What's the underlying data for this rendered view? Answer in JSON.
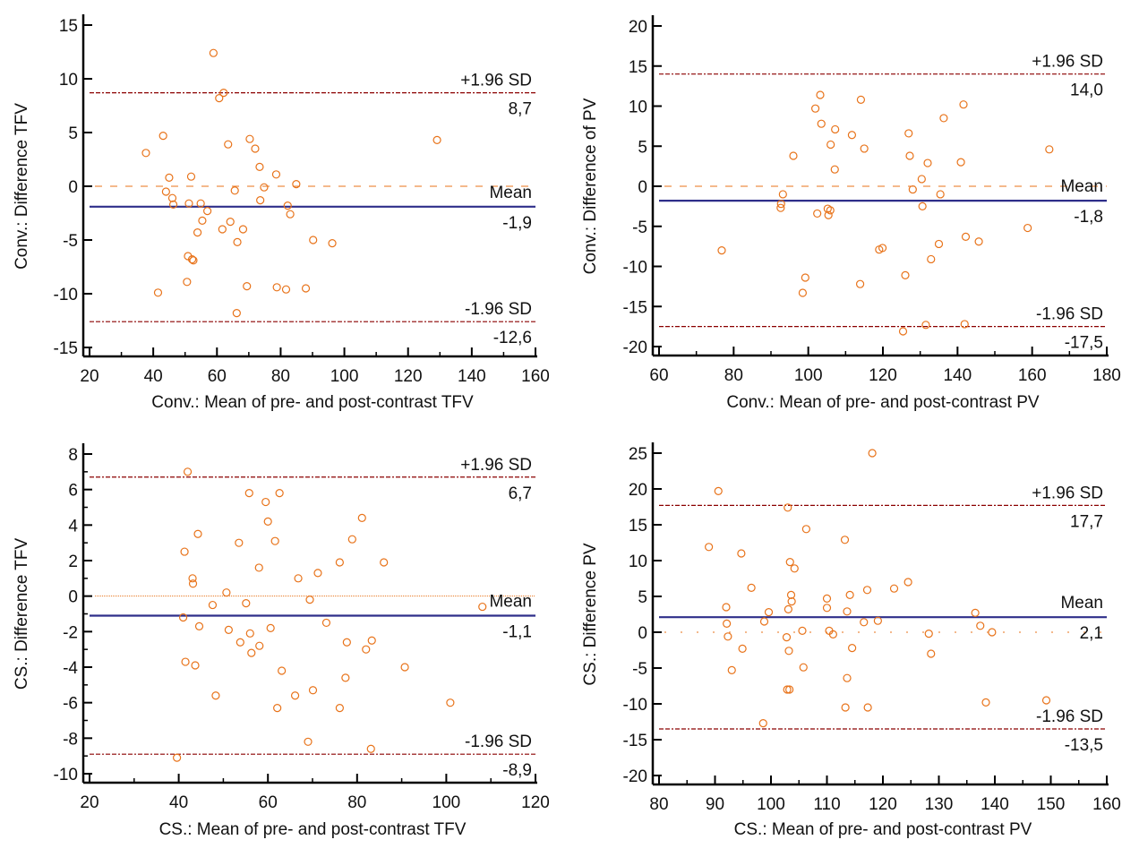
{
  "colors": {
    "points": "#e8731a",
    "mean_line": "#2e2e8a",
    "limit_line": "#8b0000",
    "zero_line": "#e8731a",
    "axis": "#000000"
  },
  "chart_data": [
    {
      "id": "conv-tfv",
      "type": "scatter",
      "title": "",
      "xlabel": "Conv.: Mean of pre- and post-contrast TFV",
      "ylabel": "Conv.: Difference TFV",
      "xlim": [
        20,
        160
      ],
      "ylim": [
        -16,
        16
      ],
      "xticks": [
        20,
        40,
        60,
        80,
        100,
        120,
        140,
        160
      ],
      "yticks": [
        -15,
        -10,
        -5,
        0,
        5,
        10,
        15
      ],
      "mean": -1.9,
      "upper_loa": 8.7,
      "lower_loa": -12.6,
      "labels": {
        "upper": "+1.96 SD",
        "upper_value": "8,7",
        "mean": "Mean",
        "mean_value": "-1,9",
        "lower": "-1.96 SD",
        "lower_value": "-12,6"
      },
      "points": [
        [
          37.7,
          3.1
        ],
        [
          41.5,
          -9.9
        ],
        [
          43.1,
          4.7
        ],
        [
          44.0,
          -0.5
        ],
        [
          45.0,
          0.8
        ],
        [
          46.0,
          -1.1
        ],
        [
          46.3,
          -1.7
        ],
        [
          50.6,
          -8.9
        ],
        [
          50.9,
          -6.5
        ],
        [
          51.2,
          -1.6
        ],
        [
          51.9,
          0.9
        ],
        [
          52.2,
          -6.8
        ],
        [
          52.6,
          -6.9
        ],
        [
          53.9,
          -4.3
        ],
        [
          54.9,
          -1.6
        ],
        [
          55.4,
          -3.2
        ],
        [
          57.0,
          -2.3
        ],
        [
          58.9,
          12.4
        ],
        [
          60.7,
          8.2
        ],
        [
          61.7,
          -4.0
        ],
        [
          62.1,
          8.7
        ],
        [
          63.5,
          3.9
        ],
        [
          64.2,
          -3.3
        ],
        [
          65.6,
          -0.4
        ],
        [
          66.2,
          -11.8
        ],
        [
          66.4,
          -5.2
        ],
        [
          68.2,
          -4.0
        ],
        [
          69.4,
          -9.3
        ],
        [
          70.3,
          4.4
        ],
        [
          72.0,
          3.5
        ],
        [
          73.4,
          1.8
        ],
        [
          73.6,
          -1.3
        ],
        [
          74.8,
          -0.1
        ],
        [
          78.6,
          1.1
        ],
        [
          78.8,
          -9.4
        ],
        [
          81.7,
          -9.6
        ],
        [
          82.2,
          -1.8
        ],
        [
          83.0,
          -2.6
        ],
        [
          84.9,
          0.2
        ],
        [
          87.9,
          -9.5
        ],
        [
          90.2,
          -5.0
        ],
        [
          96.2,
          -5.3
        ],
        [
          129.1,
          4.3
        ]
      ]
    },
    {
      "id": "conv-pv",
      "type": "scatter",
      "title": "",
      "xlabel": "Conv.: Mean of pre- and post-contrast PV",
      "ylabel": "Conv.: Difference of PV",
      "xlim": [
        60,
        180
      ],
      "ylim": [
        -21,
        21
      ],
      "xticks": [
        60,
        80,
        100,
        120,
        140,
        160,
        180
      ],
      "yticks": [
        -20,
        -15,
        -10,
        -5,
        0,
        5,
        10,
        15,
        20
      ],
      "mean": -1.8,
      "upper_loa": 14.0,
      "lower_loa": -17.5,
      "labels": {
        "upper": "+1.96 SD",
        "upper_value": "14,0",
        "mean": "Mean",
        "mean_value": "-1,8",
        "lower": "-1.96 SD",
        "lower_value": "-17,5"
      },
      "points": [
        [
          76.8,
          -8.0
        ],
        [
          92.6,
          -2.7
        ],
        [
          92.7,
          -2.2
        ],
        [
          93.2,
          -1.0
        ],
        [
          96.0,
          3.8
        ],
        [
          98.5,
          -13.3
        ],
        [
          99.2,
          -11.4
        ],
        [
          101.9,
          9.7
        ],
        [
          102.4,
          -3.4
        ],
        [
          103.2,
          11.4
        ],
        [
          103.5,
          7.8
        ],
        [
          105.2,
          -2.8
        ],
        [
          105.4,
          -3.6
        ],
        [
          105.9,
          -3.0
        ],
        [
          106.0,
          5.2
        ],
        [
          107.1,
          2.1
        ],
        [
          107.2,
          7.1
        ],
        [
          111.7,
          6.4
        ],
        [
          113.9,
          -12.2
        ],
        [
          114.1,
          10.8
        ],
        [
          115.0,
          4.7
        ],
        [
          119.0,
          -7.9
        ],
        [
          119.9,
          -7.7
        ],
        [
          125.4,
          -18.1
        ],
        [
          126.0,
          -11.1
        ],
        [
          126.9,
          6.6
        ],
        [
          127.2,
          3.8
        ],
        [
          128.0,
          -0.4
        ],
        [
          130.4,
          0.9
        ],
        [
          130.6,
          -2.5
        ],
        [
          131.5,
          -17.3
        ],
        [
          132.0,
          2.9
        ],
        [
          132.9,
          -9.1
        ],
        [
          135.0,
          -7.2
        ],
        [
          135.4,
          -1.0
        ],
        [
          136.3,
          8.5
        ],
        [
          140.9,
          3.0
        ],
        [
          141.6,
          10.2
        ],
        [
          141.9,
          -17.2
        ],
        [
          142.2,
          -6.3
        ],
        [
          145.7,
          -6.9
        ],
        [
          158.8,
          -5.2
        ],
        [
          164.6,
          4.6
        ]
      ]
    },
    {
      "id": "cs-tfv",
      "type": "scatter",
      "title": "",
      "xlabel": "CS.: Mean of pre- and post-contrast TFV",
      "ylabel": "CS.: Difference TFV",
      "xlim": [
        20,
        120
      ],
      "ylim": [
        -10.5,
        8.5
      ],
      "xticks": [
        20,
        40,
        60,
        80,
        100,
        120
      ],
      "yticks": [
        -10,
        -8,
        -6,
        -4,
        -2,
        0,
        2,
        4,
        6,
        8
      ],
      "mean": -1.1,
      "upper_loa": 6.7,
      "lower_loa": -8.9,
      "labels": {
        "upper": "+1.96 SD",
        "upper_value": "6,7",
        "mean": "Mean",
        "mean_value": "-1,1",
        "lower": "-1.96 SD",
        "lower_value": "-8,9"
      },
      "points": [
        [
          39.6,
          -9.1
        ],
        [
          41.0,
          -1.2
        ],
        [
          41.3,
          2.5
        ],
        [
          41.5,
          -3.7
        ],
        [
          42.0,
          7.0
        ],
        [
          43.1,
          1.0
        ],
        [
          43.2,
          0.7
        ],
        [
          43.7,
          -3.9
        ],
        [
          44.3,
          3.5
        ],
        [
          44.6,
          -1.7
        ],
        [
          47.6,
          -0.5
        ],
        [
          48.3,
          -5.6
        ],
        [
          50.7,
          0.2
        ],
        [
          51.2,
          -1.9
        ],
        [
          53.5,
          3.0
        ],
        [
          53.8,
          -2.6
        ],
        [
          55.1,
          -0.4
        ],
        [
          55.8,
          5.8
        ],
        [
          56.0,
          -2.1
        ],
        [
          56.3,
          -3.2
        ],
        [
          58.0,
          1.6
        ],
        [
          58.1,
          -2.8
        ],
        [
          59.5,
          5.3
        ],
        [
          60.0,
          4.2
        ],
        [
          60.6,
          -1.8
        ],
        [
          61.6,
          3.1
        ],
        [
          62.1,
          -6.3
        ],
        [
          62.6,
          5.8
        ],
        [
          63.1,
          -4.2
        ],
        [
          66.1,
          -5.6
        ],
        [
          66.8,
          1.0
        ],
        [
          69.0,
          -8.2
        ],
        [
          69.4,
          -0.2
        ],
        [
          70.1,
          -5.3
        ],
        [
          71.2,
          1.3
        ],
        [
          73.1,
          -1.5
        ],
        [
          76.1,
          -6.3
        ],
        [
          76.1,
          1.9
        ],
        [
          77.4,
          -4.6
        ],
        [
          77.7,
          -2.6
        ],
        [
          78.9,
          3.2
        ],
        [
          81.1,
          4.4
        ],
        [
          82.0,
          -3.0
        ],
        [
          83.1,
          -8.6
        ],
        [
          83.3,
          -2.5
        ],
        [
          86.0,
          1.9
        ],
        [
          90.7,
          -4.0
        ],
        [
          100.9,
          -6.0
        ],
        [
          108.1,
          -0.6
        ]
      ]
    },
    {
      "id": "cs-pv",
      "type": "scatter",
      "title": "",
      "xlabel": "CS.: Mean of pre- and post-contrast PV",
      "ylabel": "CS.: Difference PV",
      "xlim": [
        80,
        160
      ],
      "ylim": [
        -21,
        26
      ],
      "xticks": [
        80,
        90,
        100,
        110,
        120,
        130,
        140,
        150,
        160
      ],
      "yticks": [
        -20,
        -15,
        -10,
        -5,
        0,
        5,
        10,
        15,
        20,
        25
      ],
      "mean": 2.1,
      "upper_loa": 17.7,
      "lower_loa": -13.5,
      "labels": {
        "upper": "+1.96 SD",
        "upper_value": "17,7",
        "mean": "Mean",
        "mean_value": "2,1",
        "lower": "-1.96 SD",
        "lower_value": "-13,5"
      },
      "points": [
        [
          88.9,
          11.9
        ],
        [
          90.6,
          19.7
        ],
        [
          92.0,
          3.5
        ],
        [
          92.1,
          1.2
        ],
        [
          92.3,
          -0.6
        ],
        [
          93.0,
          -5.3
        ],
        [
          94.7,
          11.0
        ],
        [
          94.9,
          -2.3
        ],
        [
          96.5,
          6.2
        ],
        [
          98.6,
          -12.7
        ],
        [
          98.8,
          1.5
        ],
        [
          99.6,
          2.8
        ],
        [
          102.8,
          -0.7
        ],
        [
          102.9,
          -8.0
        ],
        [
          103.0,
          17.4
        ],
        [
          103.1,
          3.2
        ],
        [
          103.2,
          -2.6
        ],
        [
          103.3,
          -8.0
        ],
        [
          103.4,
          9.8
        ],
        [
          103.6,
          5.2
        ],
        [
          103.7,
          4.3
        ],
        [
          104.2,
          8.9
        ],
        [
          105.6,
          0.2
        ],
        [
          105.8,
          -4.9
        ],
        [
          106.3,
          14.4
        ],
        [
          110.0,
          4.7
        ],
        [
          110.0,
          3.4
        ],
        [
          110.4,
          0.2
        ],
        [
          111.1,
          -0.3
        ],
        [
          113.2,
          12.9
        ],
        [
          113.3,
          -10.5
        ],
        [
          113.6,
          2.9
        ],
        [
          113.6,
          -6.4
        ],
        [
          114.1,
          5.2
        ],
        [
          114.5,
          -2.2
        ],
        [
          116.6,
          1.4
        ],
        [
          117.2,
          5.9
        ],
        [
          117.3,
          -10.5
        ],
        [
          118.1,
          25.0
        ],
        [
          119.1,
          1.6
        ],
        [
          122.0,
          6.1
        ],
        [
          124.5,
          7.0
        ],
        [
          128.2,
          -0.2
        ],
        [
          128.6,
          -3.0
        ],
        [
          136.5,
          2.7
        ],
        [
          137.4,
          0.9
        ],
        [
          138.4,
          -9.8
        ],
        [
          139.5,
          0.0
        ],
        [
          149.2,
          -9.5
        ]
      ]
    }
  ]
}
